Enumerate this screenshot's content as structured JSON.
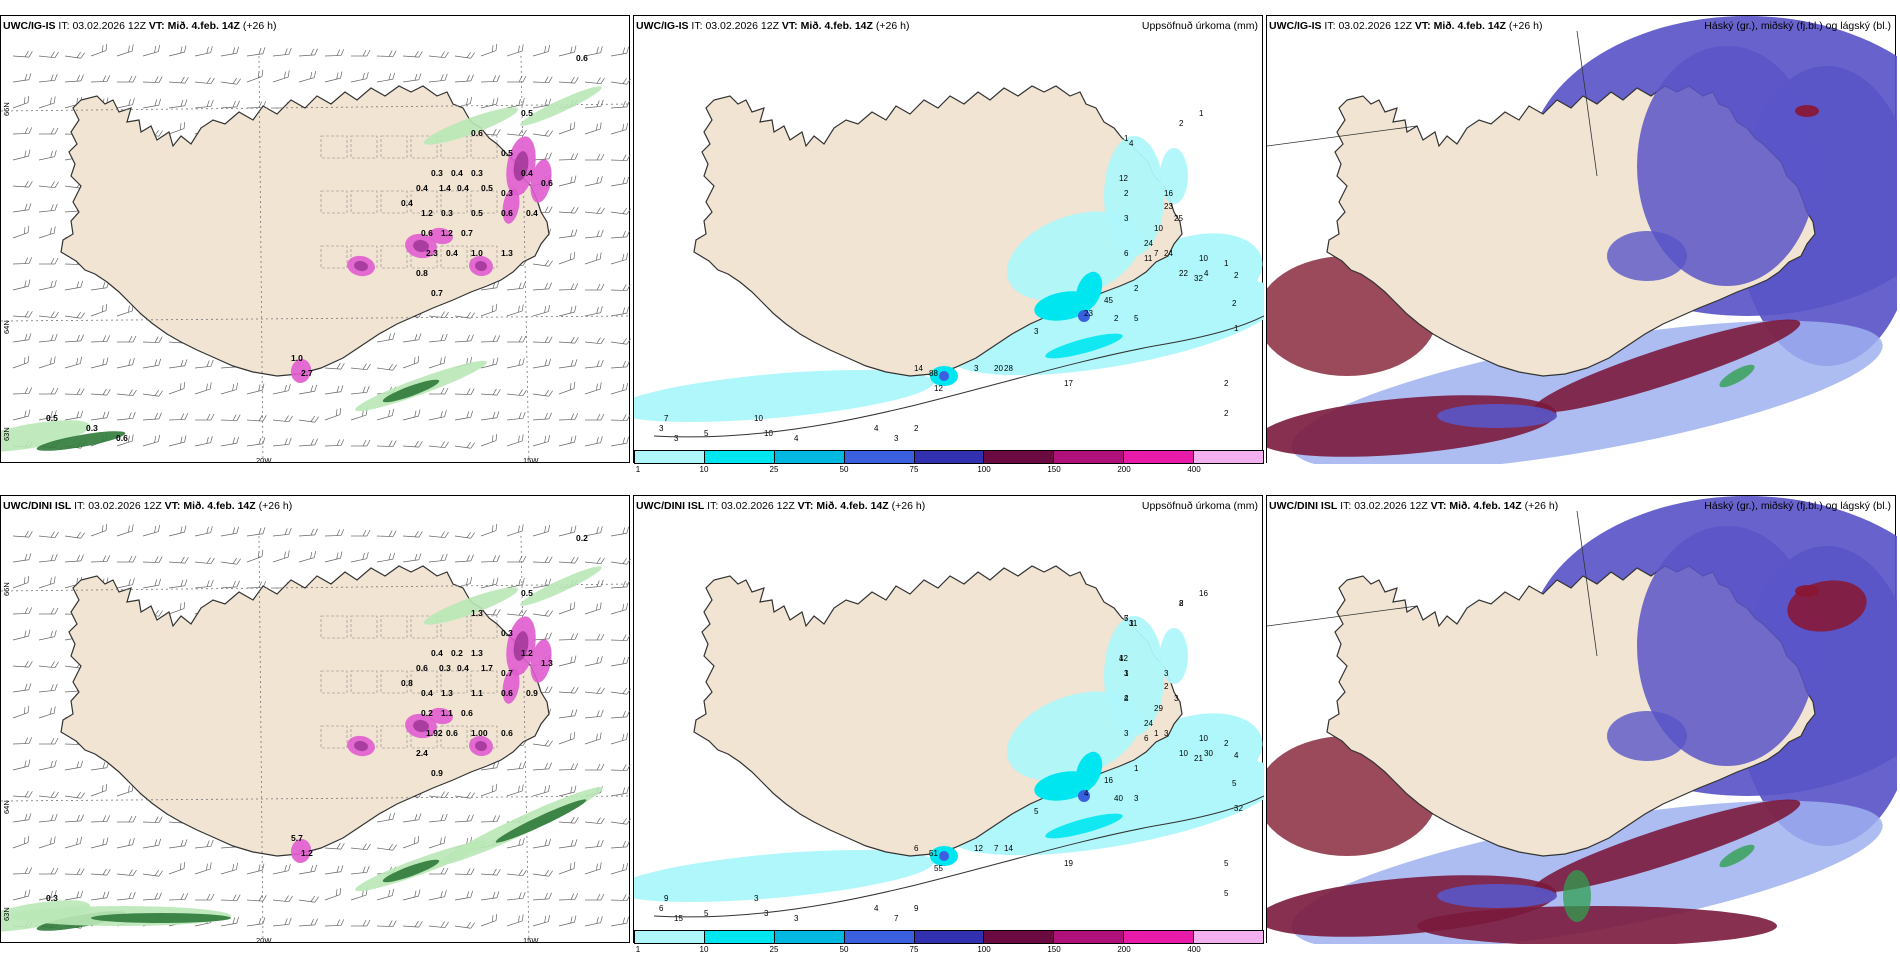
{
  "panels": [
    {
      "model": "UWC/IG-IS",
      "it_label": "IT:",
      "it": "03.02.2026 12Z",
      "vt_label": "VT:",
      "vt": "Mið. 4.feb. 14Z",
      "lead": "(+26 h)",
      "right": ""
    },
    {
      "model": "UWC/IG-IS",
      "it_label": "IT:",
      "it": "03.02.2026 12Z",
      "vt_label": "VT:",
      "vt": "Mið. 4.feb. 14Z",
      "lead": "(+26 h)",
      "right": "Uppsöfnuð úrkoma (mm)"
    },
    {
      "model": "UWC/IG-IS",
      "it_label": "IT:",
      "it": "03.02.2026 12Z",
      "vt_label": "VT:",
      "vt": "Mið. 4.feb. 14Z",
      "lead": "(+26 h)",
      "right": "Háský (gr.), miðský (fj.bl.) og lágský (bl.)"
    },
    {
      "model": "UWC/DINI ISL",
      "it_label": "IT:",
      "it": "03.02.2026 12Z",
      "vt_label": "VT:",
      "vt": "Mið. 4.feb. 14Z",
      "lead": "(+26 h)",
      "right": ""
    },
    {
      "model": "UWC/DINI ISL",
      "it_label": "IT:",
      "it": "03.02.2026 12Z",
      "vt_label": "VT:",
      "vt": "Mið. 4.feb. 14Z",
      "lead": "(+26 h)",
      "right": "Uppsöfnuð úrkoma (mm)"
    },
    {
      "model": "UWC/DINI ISL",
      "it_label": "IT:",
      "it": "03.02.2026 12Z",
      "vt_label": "VT:",
      "vt": "Mið. 4.feb. 14Z",
      "lead": "(+26 h)",
      "right": "Háský (gr.), miðský (fj.bl.) og lágský (bl.)"
    }
  ],
  "axis_labels": {
    "lon_20w": "20W",
    "lon_15w": "15W",
    "lat_66n": "66N",
    "lat_64n": "64N",
    "lat_63n": "63N"
  },
  "legend": {
    "colors": [
      "#aff7fa",
      "#00e6f0",
      "#00b8e0",
      "#3a60e0",
      "#3030b0",
      "#6a0a40",
      "#b0107a",
      "#e81ba8",
      "#f3b0f0"
    ],
    "ticks": [
      "1",
      "10",
      "25",
      "50",
      "75",
      "100",
      "150",
      "200",
      "400"
    ]
  },
  "precip_labels_top": [
    "2",
    "4",
    "1",
    "12",
    "2",
    "3",
    "16",
    "23",
    "25",
    "1",
    "24",
    "10",
    "7",
    "2",
    "6",
    "11",
    "24",
    "22",
    "32",
    "10",
    "1",
    "2",
    "2",
    "4",
    "1",
    "23",
    "45",
    "2",
    "5",
    "3",
    "28",
    "20",
    "14",
    "17",
    "88",
    "12",
    "3",
    "2",
    "2",
    "7",
    "10",
    "10",
    "4",
    "3",
    "3",
    "5",
    "3",
    "2",
    "4"
  ],
  "precip_labels_bottom": [
    "2",
    "3",
    "5",
    "12",
    "1",
    "2",
    "3",
    "2",
    "3",
    "16",
    "24",
    "29",
    "1",
    "1",
    "3",
    "6",
    "3",
    "10",
    "21",
    "10",
    "2",
    "4",
    "5",
    "30",
    "32",
    "4",
    "16",
    "40",
    "3",
    "12",
    "14",
    "7",
    "6",
    "19",
    "51",
    "55",
    "5",
    "5",
    "5",
    "9",
    "3",
    "3",
    "3",
    "15",
    "6",
    "5",
    "7",
    "9",
    "4",
    "8",
    "11",
    "7",
    "4",
    "3",
    "4"
  ],
  "snow_labels_top": [
    "0.6",
    "0.5",
    "0.6",
    "0.5",
    "0.3",
    "0.4",
    "0.3",
    "0.4",
    "1.4",
    "0.4",
    "0.5",
    "0.3",
    "0.4",
    "0.6",
    "0.4",
    "1.2",
    "0.3",
    "0.5",
    "0.6",
    "0.4",
    "0.6",
    "1.2",
    "0.7",
    "2.3",
    "0.4",
    "1.0",
    "1.3",
    "0.8",
    "0.7",
    "1.0",
    "2.7",
    "0.5",
    "0.3",
    "0.6"
  ],
  "snow_labels_bottom": [
    "0.2",
    "0.5",
    "1.3",
    "0.3",
    "0.4",
    "0.2",
    "1.3",
    "0.6",
    "0.3",
    "0.4",
    "1.7",
    "0.7",
    "1.2",
    "1.3",
    "0.8",
    "0.4",
    "1.3",
    "1.1",
    "0.6",
    "0.9",
    "0.2",
    "1.1",
    "0.6",
    "1.92",
    "0.6",
    "1.00",
    "0.6",
    "2.4",
    "0.9",
    "5.7",
    "1.2",
    "0.3"
  ],
  "colors": {
    "land": "#f1e4d2",
    "precip_light": "#aff7fa",
    "precip_mid": "#00e6f0",
    "snow_pink": "#e05ccf",
    "snow_dark": "#a43a9a",
    "green_light": "#b9e8b6",
    "green_dark": "#2f7a3a",
    "cloud_high": "#7a1a3c",
    "cloud_mid": "#5a55c8",
    "cloud_low": "#9fb2f0"
  }
}
